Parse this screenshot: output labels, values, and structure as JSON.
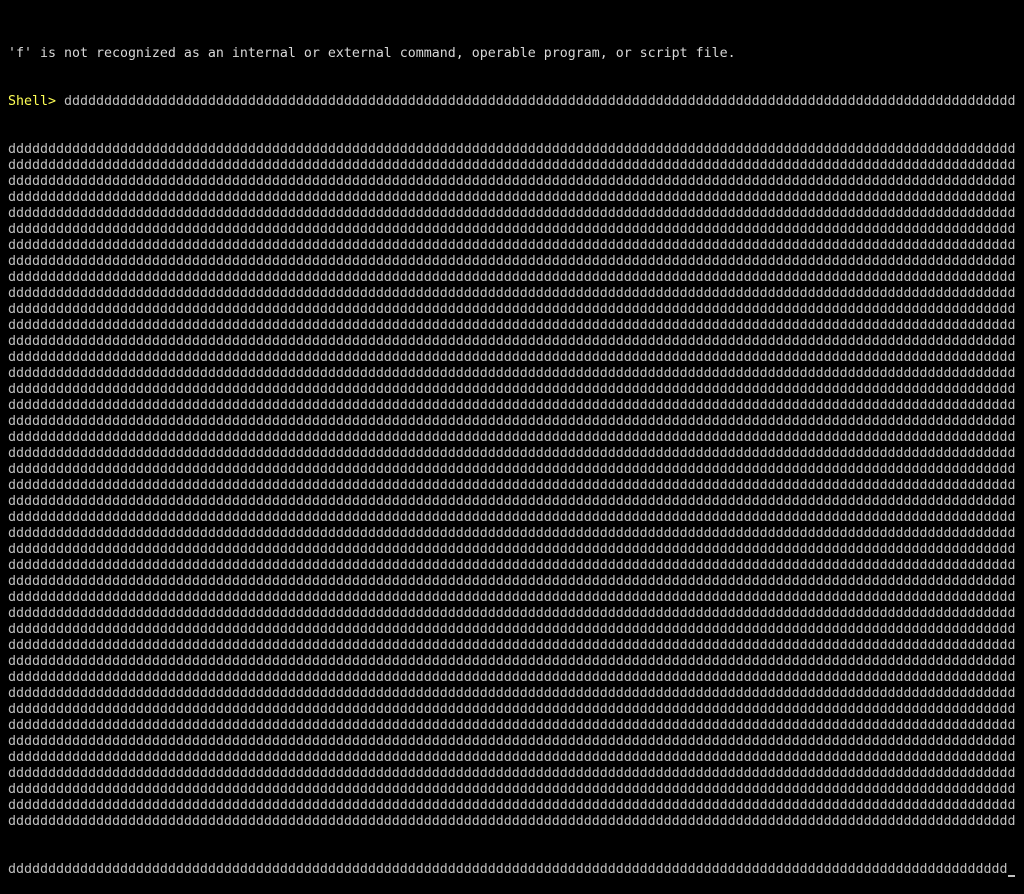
{
  "terminal": {
    "error_message": "'f' is not recognized as an internal or external command, operable program, or script file.",
    "prompt": "Shell> ",
    "input_first_row": "ddddddddddddddddddddddddddddddddddddddddddddddddddddddddddddddddddddddddddddddddddddddddddddddddddddddddddddddddddddddd",
    "input_full_row": "dddddddddddddddddddddddddddddddddddddddddddddddddddddddddddddddddddddddddddddddddddddddddddddddddddddddddddddddddddddddddddddd",
    "input_full_row_count": 43,
    "input_last_row": "ddddddddddddddddddddddddddddddddddddddddddddddddddddddddddddddddddddddddddddddddddddddddddddddddddddddddddddddddddddddddddddd",
    "colors": {
      "background": "#000000",
      "text": "#c0c0c0",
      "prompt": "#ffff55"
    }
  }
}
